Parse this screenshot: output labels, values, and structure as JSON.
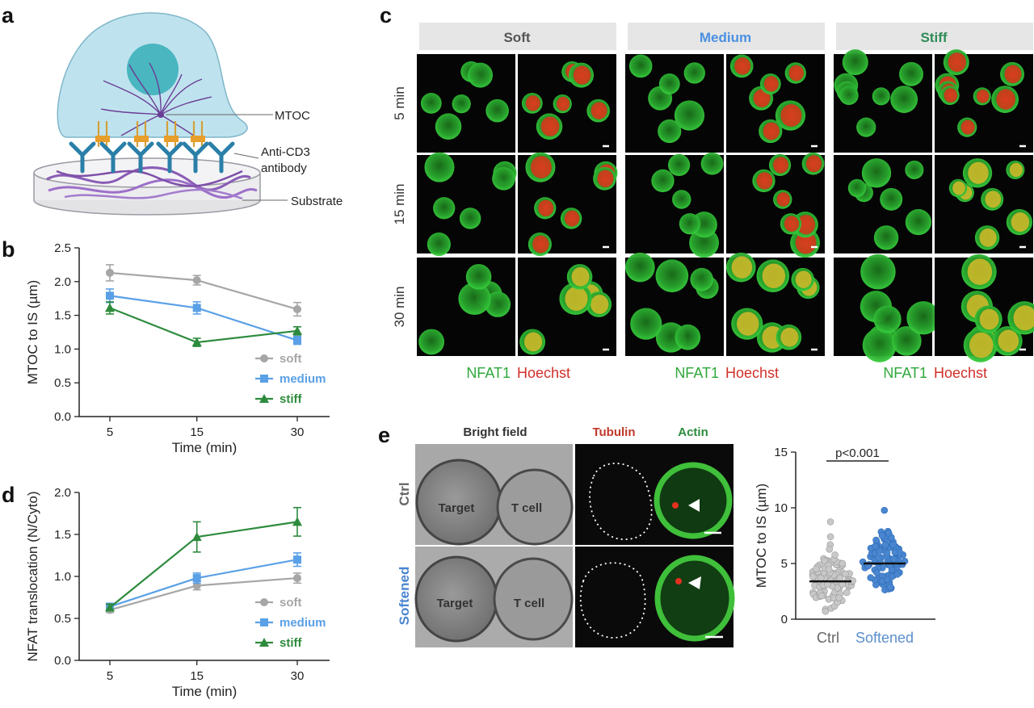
{
  "panels": {
    "a": "a",
    "b": "b",
    "c": "c",
    "d": "d",
    "e": "e"
  },
  "colors": {
    "soft": "#a6a6a6",
    "medium": "#5aa0e6",
    "stiff": "#2e8b3e",
    "green_cell": "#2fc23a",
    "red_nucleus": "#e0301e",
    "ctrl_dot": "#c8c8c8",
    "soft_dot": "#4a86d0"
  },
  "diagram_a": {
    "label_mtoc": "MTOC",
    "label_antibody_1": "Anti-CD3",
    "label_antibody_2": "antibody",
    "label_substrate": "Substrate"
  },
  "panel_c": {
    "columns": [
      {
        "title": "Soft",
        "color": "#555555"
      },
      {
        "title": "Medium",
        "color": "#4a90e2"
      },
      {
        "title": "Stiff",
        "color": "#2e8b57"
      }
    ],
    "rows": [
      "5 min",
      "15 min",
      "30 min"
    ],
    "channel_green": "NFAT1",
    "channel_red": "Hoechst"
  },
  "panel_e": {
    "header_bf": "Bright field",
    "header_tubulin": "Tubulin",
    "header_actin": "Actin",
    "row_ctrl": "Ctrl",
    "row_softened": "Softened",
    "label_target": "Target",
    "label_tcell": "T cell",
    "pvalue": "p<0.001"
  },
  "chart_data": [
    {
      "id": "b",
      "type": "line",
      "xlabel": "Time (min)",
      "ylabel": "MTOC to IS (µm)",
      "x": [
        "5",
        "15",
        "30"
      ],
      "ylim": [
        0,
        2.5
      ],
      "yticks": [
        "0.0",
        "0.5",
        "1.0",
        "1.5",
        "2.0",
        "2.5"
      ],
      "series": [
        {
          "name": "soft",
          "marker": "circle",
          "color": "#a6a6a6",
          "values": [
            2.13,
            2.02,
            1.59
          ],
          "err": [
            0.12,
            0.07,
            0.1
          ]
        },
        {
          "name": "medium",
          "marker": "square",
          "color": "#5aa0e6",
          "values": [
            1.79,
            1.61,
            1.13
          ],
          "err": [
            0.1,
            0.09,
            0.06
          ]
        },
        {
          "name": "stiff",
          "marker": "triangle",
          "color": "#2e8b3e",
          "values": [
            1.61,
            1.1,
            1.27
          ],
          "err": [
            0.09,
            0.06,
            0.06
          ]
        }
      ],
      "legend": "bottom-right"
    },
    {
      "id": "d",
      "type": "line",
      "xlabel": "Time (min)",
      "ylabel": "NFAT translocation (N/Cyto)",
      "x": [
        "5",
        "15",
        "30"
      ],
      "ylim": [
        0,
        2.0
      ],
      "yticks": [
        "0.0",
        "0.5",
        "1.0",
        "1.5",
        "2.0"
      ],
      "series": [
        {
          "name": "soft",
          "marker": "circle",
          "color": "#a6a6a6",
          "values": [
            0.6,
            0.89,
            0.98
          ],
          "err": [
            0.03,
            0.05,
            0.06
          ]
        },
        {
          "name": "medium",
          "marker": "square",
          "color": "#5aa0e6",
          "values": [
            0.64,
            0.98,
            1.2
          ],
          "err": [
            0.03,
            0.06,
            0.08
          ]
        },
        {
          "name": "stiff",
          "marker": "triangle",
          "color": "#2e8b3e",
          "values": [
            0.63,
            1.47,
            1.65
          ],
          "err": [
            0.04,
            0.18,
            0.17
          ]
        }
      ],
      "legend": "bottom-right"
    },
    {
      "id": "e",
      "type": "scatter",
      "ylabel": "MTOC to IS (µm)",
      "categories": [
        "Ctrl",
        "Softened"
      ],
      "ylim": [
        0,
        15
      ],
      "yticks": [
        "0",
        "5",
        "10",
        "15"
      ],
      "medians": [
        3.4,
        5.0
      ]
    }
  ]
}
